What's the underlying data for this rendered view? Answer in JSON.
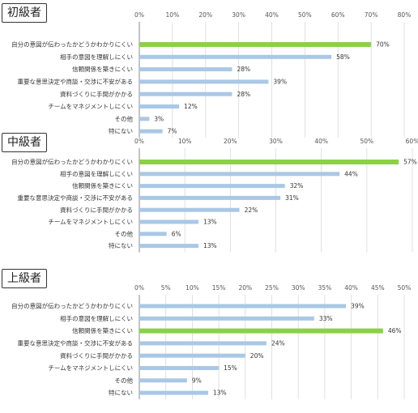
{
  "chart_data": [
    {
      "type": "bar",
      "title": "初級者",
      "categories": [
        "自分の意図が伝わったかどうかわかりにくい",
        "相手の意図を理解しにくい",
        "信頼関係を築きにくい",
        "重要な意思決定や商談・交渉に不安がある",
        "資料づくりに手間がかかる",
        "チームをマネジメントしにくい",
        "その他",
        "特にない"
      ],
      "values": [
        70,
        58,
        28,
        39,
        28,
        12,
        3,
        7
      ],
      "value_labels": [
        "70%",
        "58%",
        "28%",
        "39%",
        "28%",
        "12%",
        "3%",
        "7%"
      ],
      "xlim": [
        0,
        80
      ],
      "ticks": [
        "0%",
        "10%",
        "20%",
        "30%",
        "40%",
        "50%",
        "60%",
        "70%",
        "80%"
      ],
      "highlight_index": 0,
      "grid": true
    },
    {
      "type": "bar",
      "title": "中級者",
      "categories": [
        "自分の意図が伝わったかどうかわかりにくい",
        "相手の意図を理解しにくい",
        "信頼関係を築きにくい",
        "重要な意思決定や商談・交渉に不安がある",
        "資料づくりに手間がかかる",
        "チームをマネジメントしにくい",
        "その他",
        "特にない"
      ],
      "values": [
        57,
        44,
        32,
        31,
        22,
        13,
        6,
        13
      ],
      "value_labels": [
        "57%",
        "44%",
        "32%",
        "31%",
        "22%",
        "13%",
        "6%",
        "13%"
      ],
      "xlim": [
        0,
        60
      ],
      "ticks": [
        "0%",
        "10%",
        "20%",
        "30%",
        "40%",
        "50%",
        "60%"
      ],
      "highlight_index": 0,
      "grid": true
    },
    {
      "type": "bar",
      "title": "上級者",
      "categories": [
        "自分の意図が伝わったかどうかわかりにくい",
        "相手の意図を理解しにくい",
        "信頼関係を築きにくい",
        "重要な意思決定や商談・交渉に不安がある",
        "資料づくりに手間がかかる",
        "チームをマネジメントしにくい",
        "その他",
        "特にない"
      ],
      "values": [
        39,
        33,
        46,
        24,
        20,
        15,
        9,
        13
      ],
      "value_labels": [
        "39%",
        "33%",
        "46%",
        "24%",
        "20%",
        "15%",
        "9%",
        "13%"
      ],
      "xlim": [
        0,
        50
      ],
      "ticks": [
        "0%",
        "5%",
        "10%",
        "15%",
        "20%",
        "25%",
        "30%",
        "35%",
        "40%",
        "45%",
        "50%"
      ],
      "highlight_index": 2,
      "grid": true
    }
  ],
  "colors": {
    "bar": "#a9c8e6",
    "highlight": "#8cd048",
    "grid": "#d9d9d9",
    "axis": "#8a8a8a"
  }
}
